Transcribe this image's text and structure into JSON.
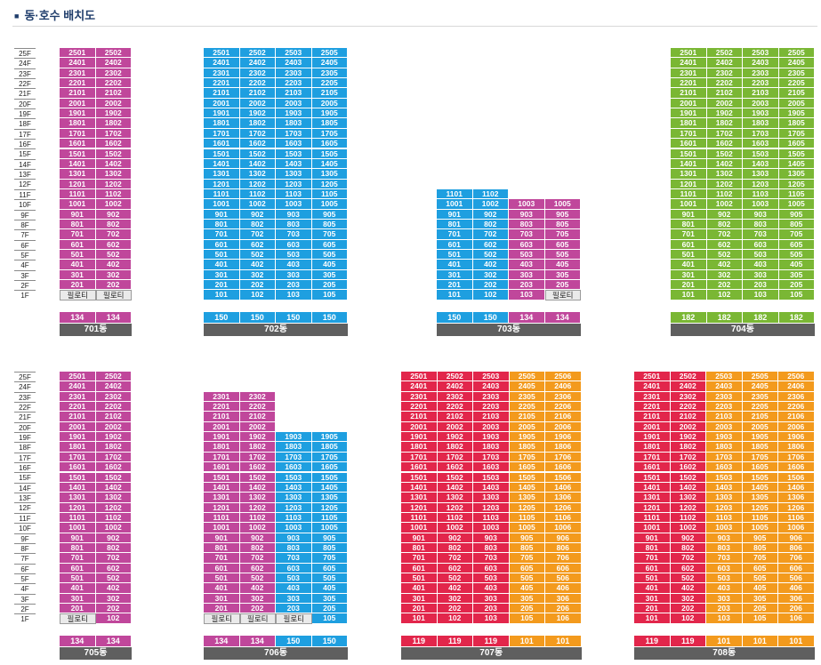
{
  "page": {
    "title": "동·호수 배치도",
    "title_icon": "square-bullet-icon"
  },
  "floor_labels": [
    "25F",
    "24F",
    "23F",
    "22F",
    "21F",
    "20F",
    "19F",
    "18F",
    "17F",
    "16F",
    "15F",
    "14F",
    "13F",
    "12F",
    "11F",
    "10F",
    "9F",
    "8F",
    "7F",
    "6F",
    "5F",
    "4F",
    "3F",
    "2F",
    "1F"
  ],
  "pilotis_label": "필로티",
  "colors": {
    "magenta": "#c0479b",
    "blue": "#1e9fe0",
    "green": "#7ab734",
    "red": "#e2264b",
    "orange": "#f39a1d",
    "pilotis": "#eaeaea",
    "dong_bar": "#5f5f5f"
  },
  "buildings": [
    {
      "name": "701동",
      "cols": [
        {
          "line": 1,
          "color": "magenta",
          "top": 25,
          "pilotis": true
        },
        {
          "line": 2,
          "color": "magenta",
          "top": 25,
          "pilotis": true
        }
      ],
      "areas": [
        "134",
        "134"
      ]
    },
    {
      "name": "702동",
      "cols": [
        {
          "line": 1,
          "color": "blue",
          "top": 25
        },
        {
          "line": 2,
          "color": "blue",
          "top": 25
        },
        {
          "line": 3,
          "color": "blue",
          "top": 25
        },
        {
          "line": 5,
          "color": "blue",
          "top": 25
        }
      ],
      "areas": [
        "150",
        "150",
        "150",
        "150"
      ]
    },
    {
      "name": "703동",
      "cols": [
        {
          "line": 1,
          "color": "blue",
          "top": 11
        },
        {
          "line": 2,
          "color": "blue",
          "top": 11
        },
        {
          "line": 3,
          "color": "magenta",
          "top": 10
        },
        {
          "line": 5,
          "color": "magenta",
          "top": 10,
          "pilotis": true
        }
      ],
      "areas": [
        "150",
        "150",
        "134",
        "134"
      ]
    },
    {
      "name": "704동",
      "cols": [
        {
          "line": 1,
          "color": "green",
          "top": 25
        },
        {
          "line": 2,
          "color": "green",
          "top": 25
        },
        {
          "line": 3,
          "color": "green",
          "top": 25
        },
        {
          "line": 5,
          "color": "green",
          "top": 25
        }
      ],
      "areas": [
        "182",
        "182",
        "182",
        "182"
      ]
    },
    {
      "name": "705동",
      "cols": [
        {
          "line": 1,
          "color": "magenta",
          "top": 25,
          "pilotis": true
        },
        {
          "line": 2,
          "color": "magenta",
          "top": 25
        }
      ],
      "areas": [
        "134",
        "134"
      ]
    },
    {
      "name": "706동",
      "cols": [
        {
          "line": 1,
          "color": "magenta",
          "top": 23,
          "pilotis": true
        },
        {
          "line": 2,
          "color": "magenta",
          "top": 23,
          "pilotis": true
        },
        {
          "line": 3,
          "color": "blue",
          "top": 19,
          "pilotis": true
        },
        {
          "line": 5,
          "color": "blue",
          "top": 19
        }
      ],
      "areas": [
        "134",
        "134",
        "150",
        "150"
      ]
    },
    {
      "name": "707동",
      "cols": [
        {
          "line": 1,
          "color": "red",
          "top": 25
        },
        {
          "line": 2,
          "color": "red",
          "top": 25
        },
        {
          "line": 3,
          "color": "red",
          "top": 25
        },
        {
          "line": 5,
          "color": "orange",
          "top": 25
        },
        {
          "line": 6,
          "color": "orange",
          "top": 25
        }
      ],
      "areas": [
        "119",
        "119",
        "119",
        "101",
        "101"
      ]
    },
    {
      "name": "708동",
      "cols": [
        {
          "line": 1,
          "color": "red",
          "top": 25
        },
        {
          "line": 2,
          "color": "red",
          "top": 25
        },
        {
          "line": 3,
          "color": "orange",
          "top": 25
        },
        {
          "line": 5,
          "color": "orange",
          "top": 25
        },
        {
          "line": 6,
          "color": "orange",
          "top": 25
        }
      ],
      "areas": [
        "119",
        "119",
        "101",
        "101",
        "101"
      ]
    }
  ]
}
